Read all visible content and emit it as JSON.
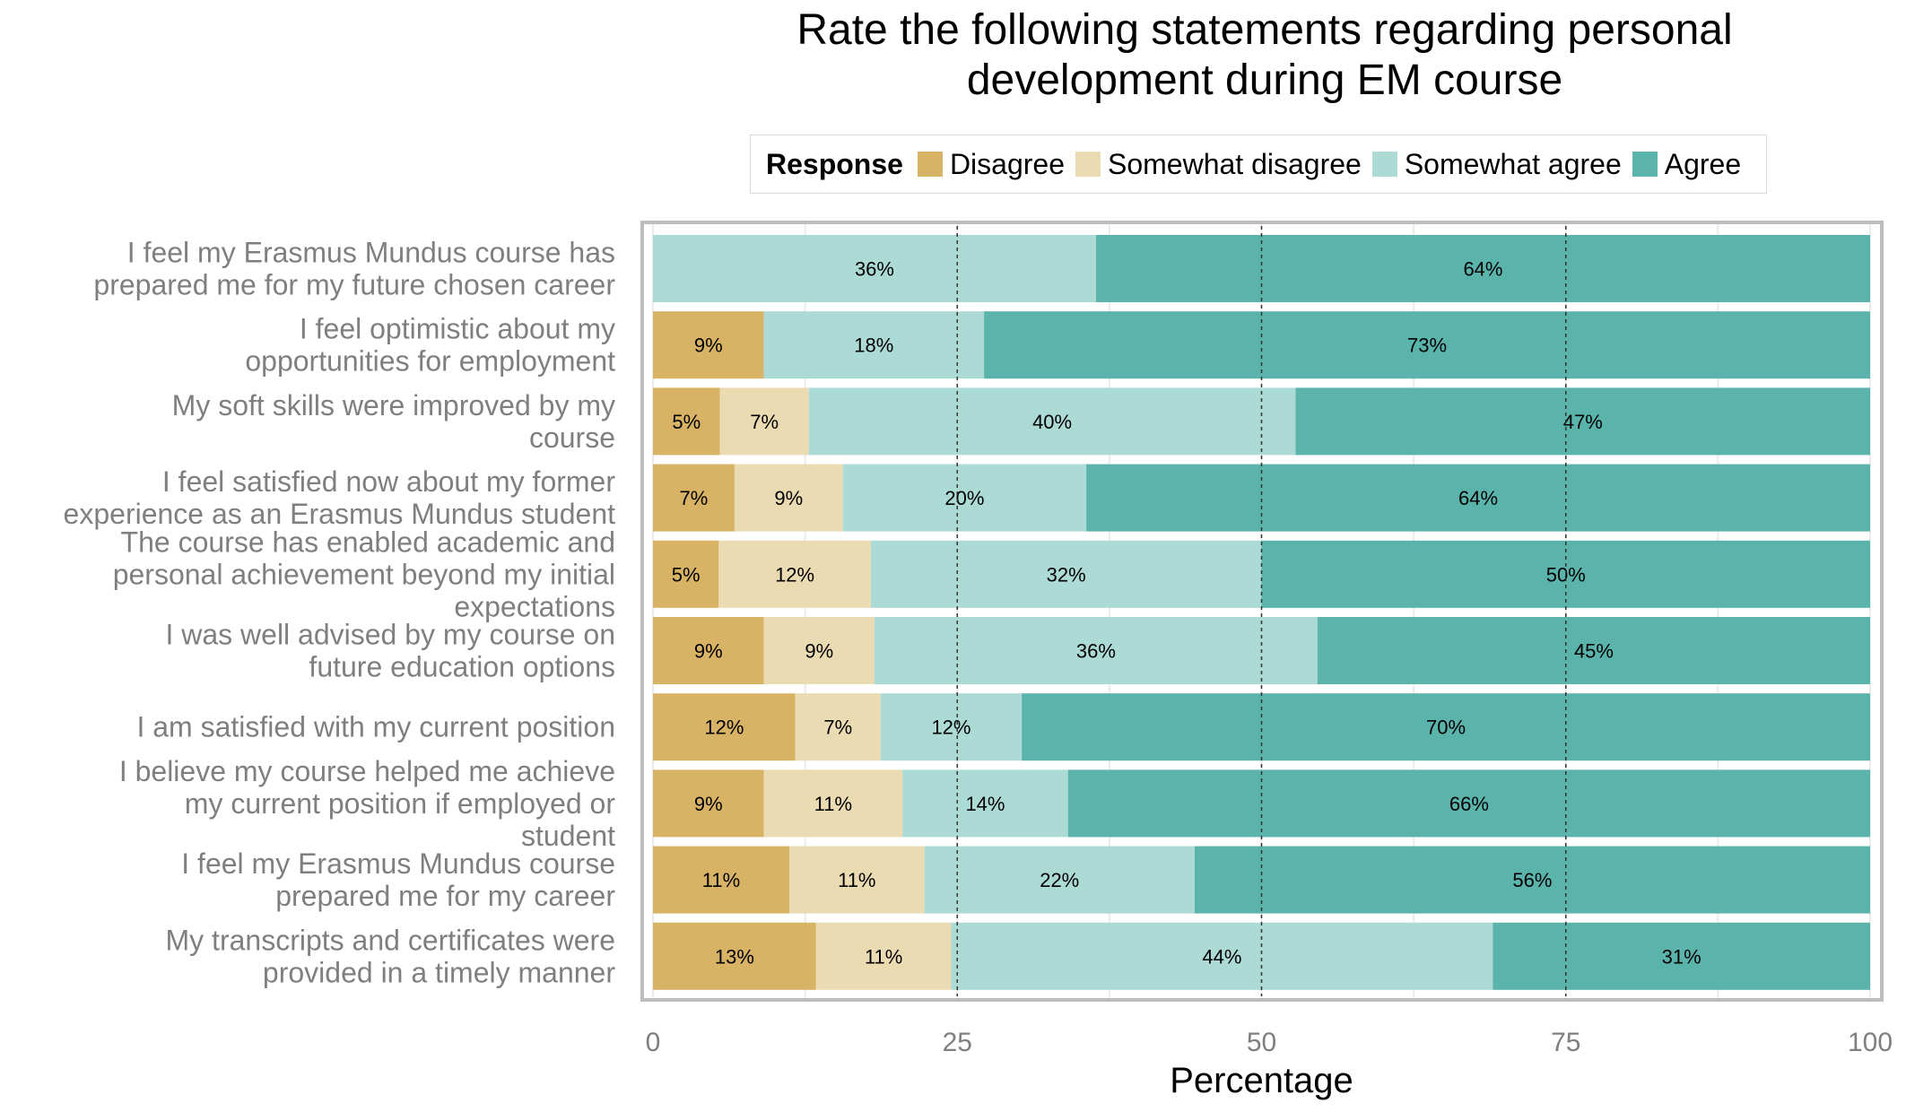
{
  "chart_data": {
    "type": "bar",
    "orientation": "horizontal",
    "stacked": true,
    "title": [
      "Rate the following statements regarding personal",
      "development during EM course"
    ],
    "xlabel": "Percentage",
    "ylabel": "",
    "xlim": [
      0,
      100
    ],
    "xticks": [
      0,
      25,
      50,
      75,
      100
    ],
    "vlines": [
      25,
      50,
      75
    ],
    "legend": {
      "title": "Response",
      "position": "top"
    },
    "categories": [
      [
        "I feel my Erasmus Mundus course has",
        "prepared me for my future chosen career"
      ],
      [
        "I feel optimistic about my",
        "opportunities for employment"
      ],
      [
        "My soft skills were improved by my",
        "course"
      ],
      [
        "I feel satisfied now about my former",
        "experience as an Erasmus Mundus student"
      ],
      [
        "The course has enabled academic and",
        "personal achievement beyond my initial",
        "expectations"
      ],
      [
        "I was well advised by my course on",
        "future education options"
      ],
      [
        "I am satisfied with my current position"
      ],
      [
        "I believe my course helped me achieve",
        "my current position if employed or",
        "student"
      ],
      [
        "I feel my Erasmus Mundus course",
        "prepared me for my career"
      ],
      [
        "My transcripts and certificates were",
        "provided in a timely manner"
      ]
    ],
    "series": [
      {
        "name": "Disagree",
        "color": "#d8b365",
        "values": [
          0,
          9.1,
          5.5,
          6.7,
          5.4,
          9.1,
          11.7,
          9.1,
          11.2,
          13.4
        ],
        "labels": [
          "",
          "9%",
          "5%",
          "7%",
          "5%",
          "9%",
          "12%",
          "9%",
          "11%",
          "13%"
        ]
      },
      {
        "name": "Somewhat disagree",
        "color": "#ebdbb2",
        "values": [
          0,
          0,
          7.3,
          8.9,
          12.5,
          9.1,
          7.0,
          11.4,
          11.1,
          11.1
        ],
        "labels": [
          "",
          "",
          "7%",
          "9%",
          "12%",
          "9%",
          "7%",
          "11%",
          "11%",
          "11%"
        ]
      },
      {
        "name": "Somewhat agree",
        "color": "#acdad5",
        "values": [
          36.4,
          18.1,
          40.0,
          20.0,
          32.1,
          36.4,
          11.6,
          13.6,
          22.2,
          44.5
        ],
        "labels": [
          "36%",
          "18%",
          "40%",
          "20%",
          "32%",
          "36%",
          "12%",
          "14%",
          "22%",
          "44%"
        ]
      },
      {
        "name": "Agree",
        "color": "#5ab4ac",
        "values": [
          63.6,
          72.8,
          47.2,
          64.4,
          50.0,
          45.4,
          69.7,
          65.9,
          55.5,
          31.0
        ],
        "labels": [
          "64%",
          "73%",
          "47%",
          "64%",
          "50%",
          "45%",
          "70%",
          "66%",
          "56%",
          "31%"
        ]
      }
    ]
  }
}
